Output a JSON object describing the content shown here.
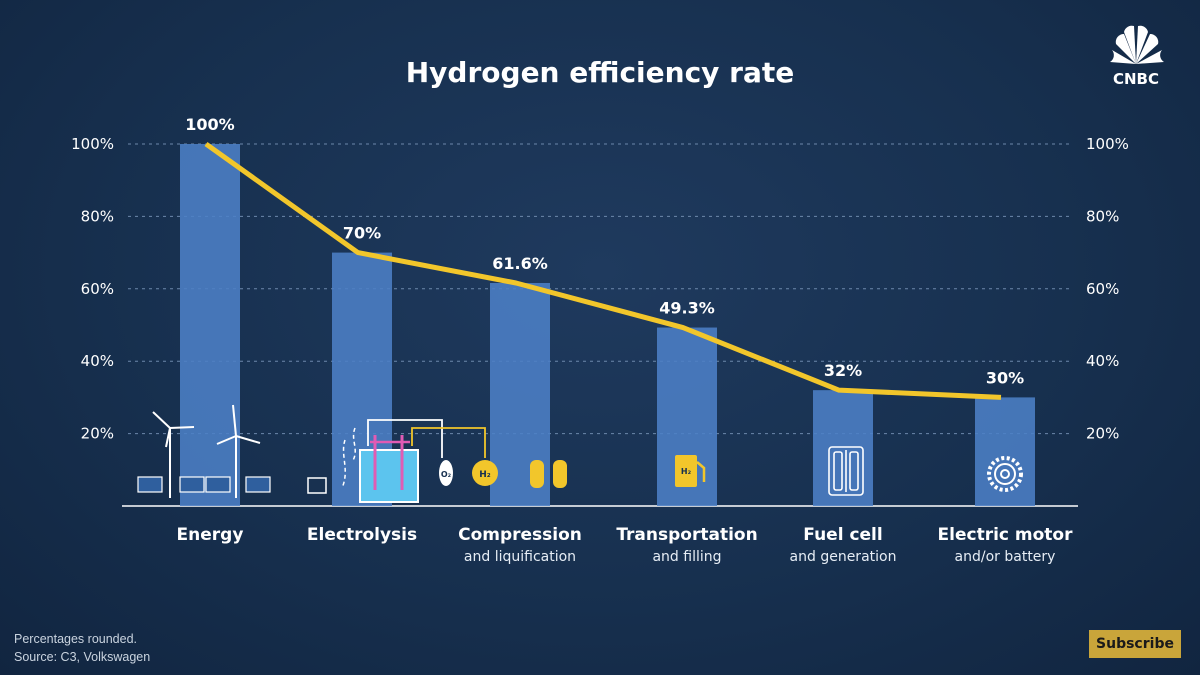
{
  "brand": {
    "logo_text": "CNBC"
  },
  "footnotes": {
    "line1": "Percentages rounded.",
    "line2": "Source: C3, Volkswagen"
  },
  "subscribe_label": "Subscribe",
  "colors": {
    "bar": "#4c80c6",
    "line": "#f2c62b",
    "grid": "#6d88ab",
    "background": "#17304f"
  },
  "chart_data": {
    "type": "bar",
    "title": "Hydrogen efficiency rate",
    "categories": [
      "Energy",
      "Electrolysis",
      "Compression",
      "Transportation",
      "Fuel cell",
      "Electric motor"
    ],
    "category_subtitles": [
      "",
      "",
      "and liquification",
      "and filling",
      "and generation",
      "and/or battery"
    ],
    "values": [
      100,
      70,
      61.6,
      49.3,
      32,
      30
    ],
    "value_labels": [
      "100%",
      "70%",
      "61.6%",
      "49.3%",
      "32%",
      "30%"
    ],
    "overlay_line": true,
    "ylim": [
      0,
      100
    ],
    "yticks": [
      20,
      40,
      60,
      80,
      100
    ],
    "ytick_labels": [
      "20%",
      "40%",
      "60%",
      "80%",
      "100%"
    ],
    "y_axis_both_sides": true,
    "grid": true,
    "icons": [
      "wind-turbine-solar-panel-icon",
      "electrolysis-icon",
      "hydrogen-tank-icon",
      "fuel-pump-icon",
      "fuel-cell-icon",
      "electric-motor-icon"
    ],
    "icon_labels": {
      "oxygen": "O₂",
      "hydrogen": "H₂",
      "pump": "H₂"
    }
  }
}
